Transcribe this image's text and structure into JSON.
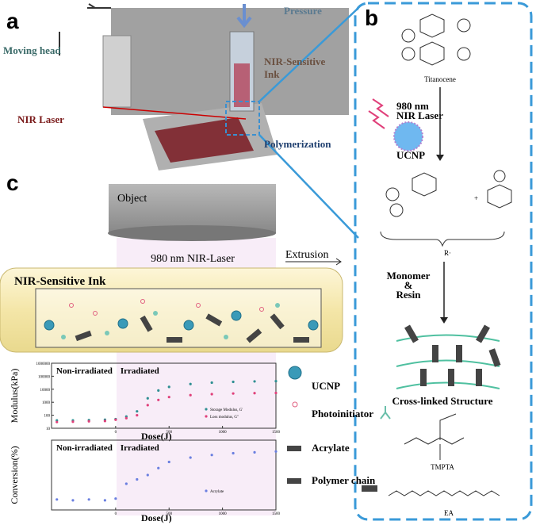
{
  "panel_a": {
    "label": "a",
    "pressure": "Pressure",
    "moving_head": "Moving head",
    "ink_line1": "NIR-Sensitive",
    "ink_line2": "Ink",
    "laser": "NIR Laser",
    "polymerization": "Polymerization"
  },
  "panel_b": {
    "label": "b",
    "titanocene": "Titanocene",
    "laser_line1": "980 nm",
    "laser_line2": "NIR Laser",
    "ucnp": "UCNP",
    "radical": "R·",
    "plus": "+",
    "monomer_line1": "Monomer",
    "monomer_line2": "&",
    "monomer_line3": "Resin",
    "crosslinked": "Cross-linked Structure",
    "tmpta": "TMPTA",
    "ea": "EA"
  },
  "panel_c": {
    "label": "c",
    "object": "Object",
    "laser": "980 nm NIR-Laser",
    "extrusion": "Extrusion",
    "ink": "NIR-Sensitive Ink",
    "legend": [
      "UCNP",
      "Photoinitiator",
      "Acrylate",
      "Polymer chain"
    ]
  },
  "chart_data": [
    {
      "type": "scatter",
      "y_label": "Modulus(kPa)",
      "x_label": "Dose(J)",
      "annotations": [
        "Non-irradiated",
        "Irradiated"
      ],
      "log_y": true,
      "xlim": [
        -600,
        1500
      ],
      "xticks": [
        0,
        500,
        1000,
        1500
      ],
      "ylim": [
        10,
        1000000
      ],
      "yticks": [
        10,
        100,
        1000,
        10000,
        100000,
        1000000
      ],
      "x": [
        -550,
        -400,
        -250,
        -100,
        0,
        100,
        200,
        300,
        400,
        500,
        700,
        900,
        1100,
        1300,
        1500
      ],
      "series": [
        {
          "name": "Storage Modulus, G'",
          "color": "#2f8f92",
          "values": [
            40,
            40,
            42,
            45,
            50,
            80,
            200,
            2000,
            8000,
            15000,
            25000,
            32000,
            37000,
            40000,
            42000
          ]
        },
        {
          "name": "Loss modulus, G''",
          "color": "#e0407a",
          "values": [
            30,
            32,
            34,
            36,
            45,
            60,
            100,
            600,
            1500,
            2500,
            3500,
            4200,
            4700,
            5000,
            5200
          ]
        }
      ]
    },
    {
      "type": "scatter",
      "y_label": "Conversion(%)",
      "x_label": "Dose(J)",
      "annotations": [
        "Non-irradiated",
        "Irradiated"
      ],
      "log_y": false,
      "xlim": [
        -600,
        1500
      ],
      "xticks": [
        0,
        500,
        1000,
        1500
      ],
      "ylim": [
        -10,
        70
      ],
      "x": [
        -550,
        -400,
        -250,
        -100,
        0,
        100,
        200,
        300,
        400,
        500,
        700,
        900,
        1100,
        1300,
        1500
      ],
      "series": [
        {
          "name": "Acrylate",
          "color": "#6a7fe0",
          "values": [
            2,
            1,
            2,
            1,
            3,
            20,
            25,
            30,
            38,
            45,
            50,
            53,
            55,
            56,
            57
          ]
        }
      ]
    }
  ]
}
